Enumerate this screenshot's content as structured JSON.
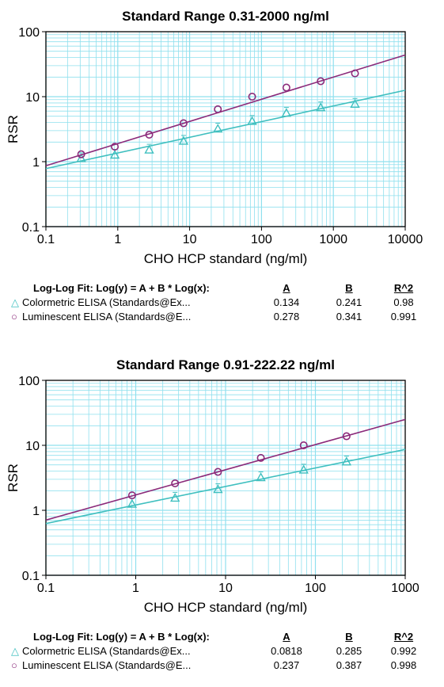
{
  "chart_data": [
    {
      "type": "scatter",
      "title": "Standard Range 0.31-2000 ng/ml",
      "xlabel": "CHO HCP standard (ng/ml)",
      "ylabel": "RSR",
      "xscale": "log",
      "yscale": "log",
      "xlim": [
        0.1,
        10000
      ],
      "ylim": [
        0.1,
        100
      ],
      "xticks": [
        "0.1",
        "1",
        "10",
        "100",
        "1000",
        "10000"
      ],
      "yticks": [
        "0.1",
        "1",
        "10",
        "100"
      ],
      "grid": true,
      "colors": {
        "colorimetric": "#3fbfbf",
        "luminescent": "#8b2a7a",
        "grid": "#8fe0ee"
      },
      "series": [
        {
          "name": "Colormetric ELISA (Standards@Ex...",
          "marker": "triangle",
          "color": "#3fbfbf",
          "fit": {
            "A": 0.134,
            "B": 0.241
          },
          "x": [
            0.31,
            0.91,
            2.74,
            8.23,
            24.7,
            74.1,
            222.22,
            666.67,
            2000
          ],
          "y": [
            1.12,
            1.27,
            1.52,
            2.08,
            3.2,
            4.2,
            5.6,
            6.8,
            7.7
          ]
        },
        {
          "name": "Luminescent ELISA (Standards@E...",
          "marker": "circle",
          "color": "#8b2a7a",
          "fit": {
            "A": 0.278,
            "B": 0.341
          },
          "x": [
            0.31,
            0.91,
            2.74,
            8.23,
            24.7,
            74.1,
            222.22,
            666.67,
            2000
          ],
          "y": [
            1.3,
            1.7,
            2.6,
            3.9,
            6.4,
            10.0,
            13.8,
            17.3,
            22.8
          ]
        }
      ],
      "fit_table": {
        "heading": "Log-Log Fit: Log(y) = A + B * Log(x):",
        "columns": [
          "A",
          "B",
          "R^2"
        ],
        "rows": [
          {
            "symbol": "△",
            "label": "Colormetric ELISA (Standards@Ex...",
            "A": "0.134",
            "B": "0.241",
            "R2": "0.98"
          },
          {
            "symbol": "○",
            "label": "Luminescent ELISA (Standards@E...",
            "A": "0.278",
            "B": "0.341",
            "R2": "0.991"
          }
        ]
      }
    },
    {
      "type": "scatter",
      "title": "Standard Range 0.91-222.22 ng/ml",
      "xlabel": "CHO HCP standard (ng/ml)",
      "ylabel": "RSR",
      "xscale": "log",
      "yscale": "log",
      "xlim": [
        0.1,
        1000
      ],
      "ylim": [
        0.1,
        100
      ],
      "xticks": [
        "0.1",
        "1",
        "10",
        "100",
        "1000"
      ],
      "yticks": [
        "0.1",
        "1",
        "10",
        "100"
      ],
      "grid": true,
      "colors": {
        "colorimetric": "#3fbfbf",
        "luminescent": "#8b2a7a",
        "grid": "#8fe0ee"
      },
      "series": [
        {
          "name": "Colormetric ELISA (Standards@Ex...",
          "marker": "triangle",
          "color": "#3fbfbf",
          "fit": {
            "A": 0.0818,
            "B": 0.285
          },
          "x": [
            0.91,
            2.74,
            8.23,
            24.7,
            74.1,
            222.22
          ],
          "y": [
            1.25,
            1.55,
            2.1,
            3.2,
            4.2,
            5.6
          ]
        },
        {
          "name": "Luminescent ELISA (Standards@E...",
          "marker": "circle",
          "color": "#8b2a7a",
          "fit": {
            "A": 0.237,
            "B": 0.387
          },
          "x": [
            0.91,
            2.74,
            8.23,
            24.7,
            74.1,
            222.22
          ],
          "y": [
            1.7,
            2.6,
            3.9,
            6.4,
            10.0,
            13.8
          ]
        }
      ],
      "fit_table": {
        "heading": "Log-Log Fit: Log(y) = A + B * Log(x):",
        "columns": [
          "A",
          "B",
          "R^2"
        ],
        "rows": [
          {
            "symbol": "△",
            "label": "Colormetric ELISA (Standards@Ex...",
            "A": "0.0818",
            "B": "0.285",
            "R2": "0.992"
          },
          {
            "symbol": "○",
            "label": "Luminescent ELISA (Standards@E...",
            "A": "0.237",
            "B": "0.387",
            "R2": "0.998"
          }
        ]
      }
    }
  ]
}
